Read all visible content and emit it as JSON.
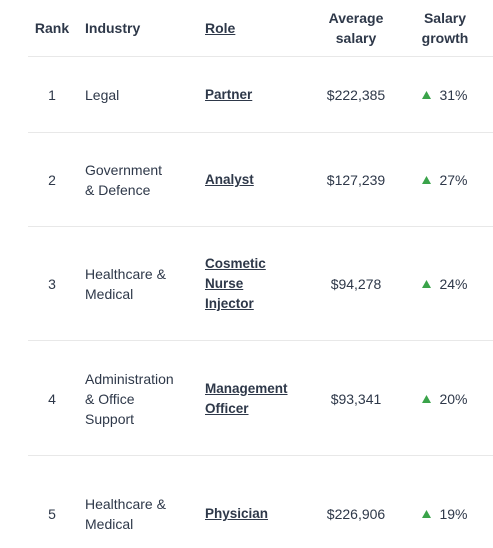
{
  "table": {
    "headers": [
      "Rank",
      "Industry",
      "Role",
      "Average salary",
      "Salary growth"
    ],
    "rows": [
      [
        "1",
        "Legal",
        "Partner",
        "$222,385",
        "31%"
      ],
      [
        "2",
        "Government & Defence",
        "Analyst",
        "$127,239",
        "27%"
      ],
      [
        "3",
        "Healthcare & Medical",
        "Cosmetic Nurse Injector",
        "$94,278",
        "24%"
      ],
      [
        "4",
        "Administration & Office Support",
        "Management Officer",
        "$93,341",
        "20%"
      ],
      [
        "5",
        "Healthcare & Medical",
        "Physician",
        "$226,906",
        "19%"
      ]
    ]
  }
}
